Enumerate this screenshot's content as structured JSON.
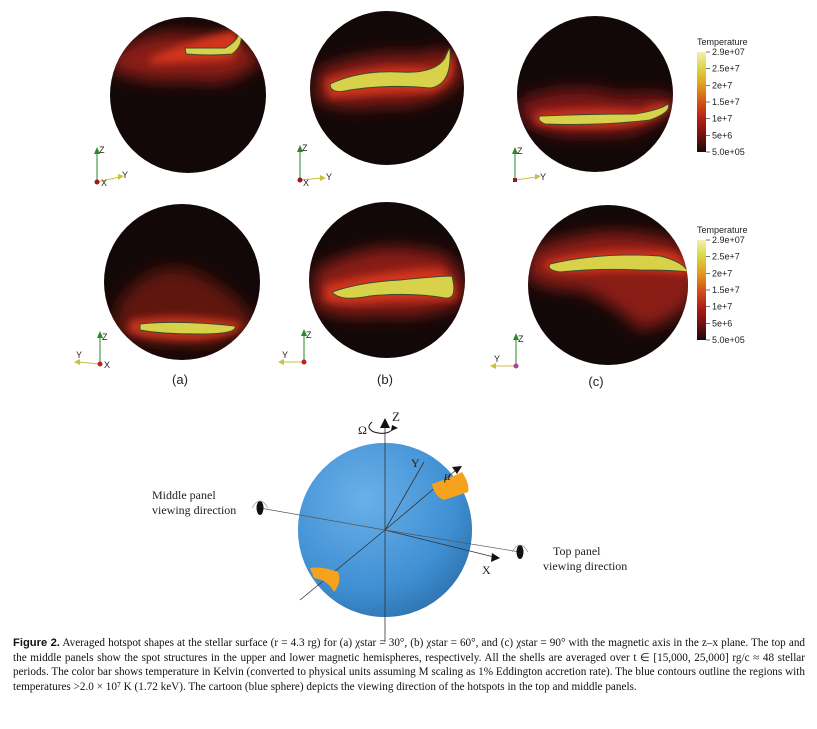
{
  "panels": {
    "labels": [
      "(a)",
      "(b)",
      "(c)"
    ],
    "axis_labels": {
      "x": "X",
      "y": "Y",
      "z": "Z"
    }
  },
  "colorbar": {
    "title": "Temperature",
    "ticks": [
      "2.9e+07",
      "2.5e+7",
      "2e+7",
      "1.5e+7",
      "1e+7",
      "5e+6",
      "5.0e+05"
    ],
    "colors": [
      "#f2f0b0",
      "#dcd84a",
      "#e0a21e",
      "#d4531a",
      "#b01c16",
      "#6e1212",
      "#1e0808"
    ]
  },
  "cartoon": {
    "z_label": "Z",
    "y_label": "Y",
    "x_label": "X",
    "omega_label": "Ω",
    "mu_label": "μ",
    "middle_label_1": "Middle panel",
    "middle_label_2": "viewing direction",
    "top_label_1": "Top panel",
    "top_label_2": "viewing direction",
    "sphere_color": "#3f8fd2",
    "spot_color": "#f6a21c"
  },
  "caption": {
    "label": "Figure 2.",
    "text": "Averaged hotspot shapes at the stellar surface (r = 4.3 rg) for (a) χstar = 30°, (b) χstar = 60°, and (c) χstar = 90° with the magnetic axis in the z–x plane. The top and the middle panels show the spot structures in the upper and lower magnetic hemispheres, respectively. All the shells are averaged over t ∈ [15,000, 25,000] rg/c ≈ 48 stellar periods. The color bar shows temperature in Kelvin (converted to physical units assuming M scaling as 1% Eddington accretion rate). The blue contours outline the regions with temperatures >2.0 × 10⁷ K (1.72 keV). The cartoon (blue sphere) depicts the viewing direction of the hotspots in the top and middle panels."
  }
}
